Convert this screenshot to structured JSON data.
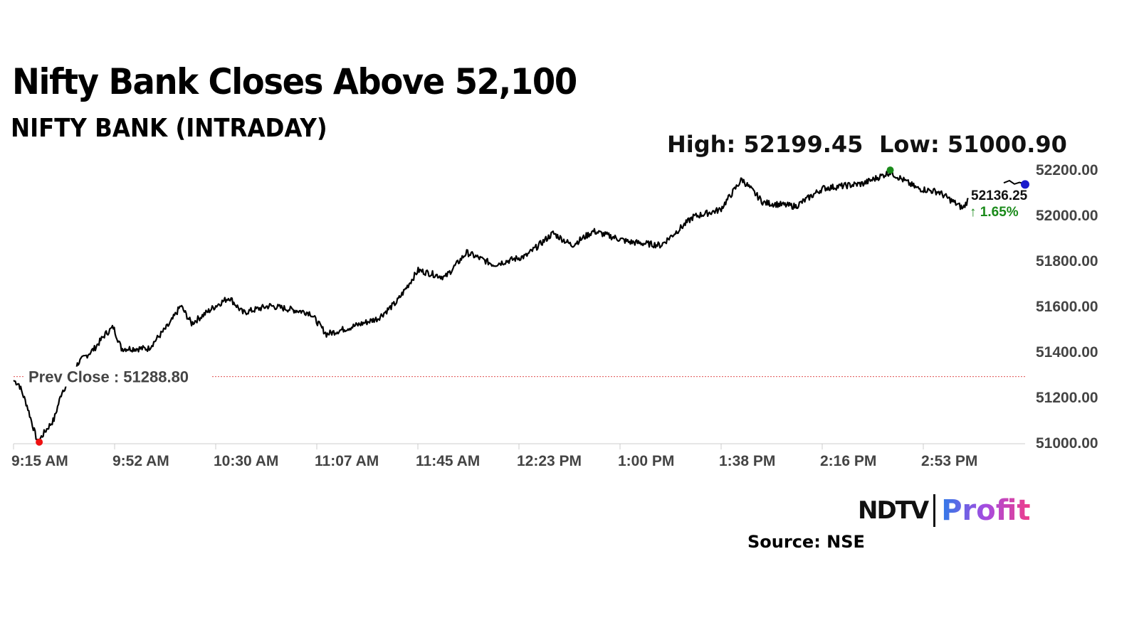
{
  "header": {
    "title": "Nifty Bank Closes Above 52,100",
    "subtitle": "NIFTY BANK (INTRADAY)"
  },
  "chart_data": {
    "type": "line",
    "title": "NIFTY BANK (INTRADAY)",
    "high_label": "High: 52199.45",
    "low_label": "Low: 51000.90",
    "prev_close_label": "Prev Close : 51288.80",
    "prev_close": 51288.8,
    "last_value_label": "52136.25",
    "change_label": "↑ 1.65%",
    "ylim": [
      51000,
      52200
    ],
    "y_ticks": [
      "51000.00",
      "51200.00",
      "51400.00",
      "51600.00",
      "51800.00",
      "52000.00",
      "52200.00"
    ],
    "y_tick_values": [
      51000,
      51200,
      51400,
      51600,
      51800,
      52000,
      52200
    ],
    "x_ticks": [
      "9:15 AM",
      "9:52 AM",
      "10:30 AM",
      "11:07 AM",
      "11:45 AM",
      "12:23 PM",
      "1:00 PM",
      "1:38 PM",
      "2:16 PM",
      "2:53 PM"
    ],
    "x_range_minutes_after_915": [
      0,
      375
    ],
    "series": [
      {
        "name": "Nifty Bank",
        "x_minutes": [
          0,
          2,
          5,
          8,
          9,
          12,
          15,
          18,
          20,
          24,
          30,
          34,
          37,
          40,
          50,
          58,
          62,
          66,
          75,
          80,
          85,
          95,
          110,
          116,
          125,
          135,
          142,
          150,
          160,
          168,
          178,
          190,
          200,
          207,
          215,
          228,
          240,
          252,
          262,
          270,
          278,
          290,
          300,
          315,
          325,
          335,
          343,
          352,
          354
        ],
        "values": [
          51272,
          51256,
          51162,
          51037,
          51000,
          51053,
          51100,
          51225,
          51256,
          51350,
          51412,
          51475,
          51506,
          51412,
          51412,
          51522,
          51600,
          51522,
          51600,
          51637,
          51569,
          51600,
          51569,
          51475,
          51506,
          51544,
          51616,
          51756,
          51725,
          51834,
          51781,
          51819,
          51919,
          51866,
          51928,
          51881,
          51866,
          51991,
          52022,
          52156,
          52053,
          52037,
          52116,
          52137,
          52187,
          52116,
          52100,
          52028,
          52069
        ]
      }
    ],
    "high_point": {
      "minute": 325,
      "value": 52199.45
    },
    "low_point": {
      "minute": 9,
      "value": 51000.9
    },
    "close_point": {
      "minute": 375,
      "value": 52136.25
    },
    "colors": {
      "line": "#000000",
      "high": "#1a8a1a",
      "low": "#ee1111",
      "close": "#1a1acc",
      "prev_close": "#e05050",
      "change": "#1a8a1a",
      "axis_text": "#444444"
    }
  },
  "branding": {
    "ndtv": "NDTV",
    "profit": "Profit",
    "source": "Source: NSE"
  }
}
